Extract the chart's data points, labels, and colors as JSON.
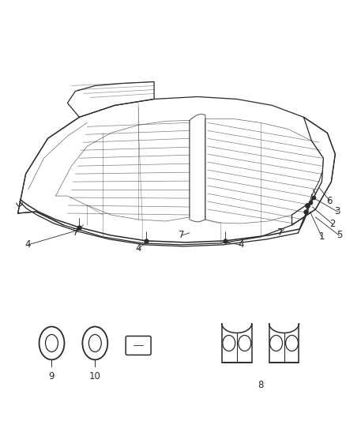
{
  "background_color": "#ffffff",
  "figure_width": 4.38,
  "figure_height": 5.33,
  "dpi": 100,
  "line_color": "#2a2a2a",
  "lw_body": 0.9,
  "lw_pipe": 1.1,
  "lw_rib": 0.5,
  "lw_thin": 0.5
}
